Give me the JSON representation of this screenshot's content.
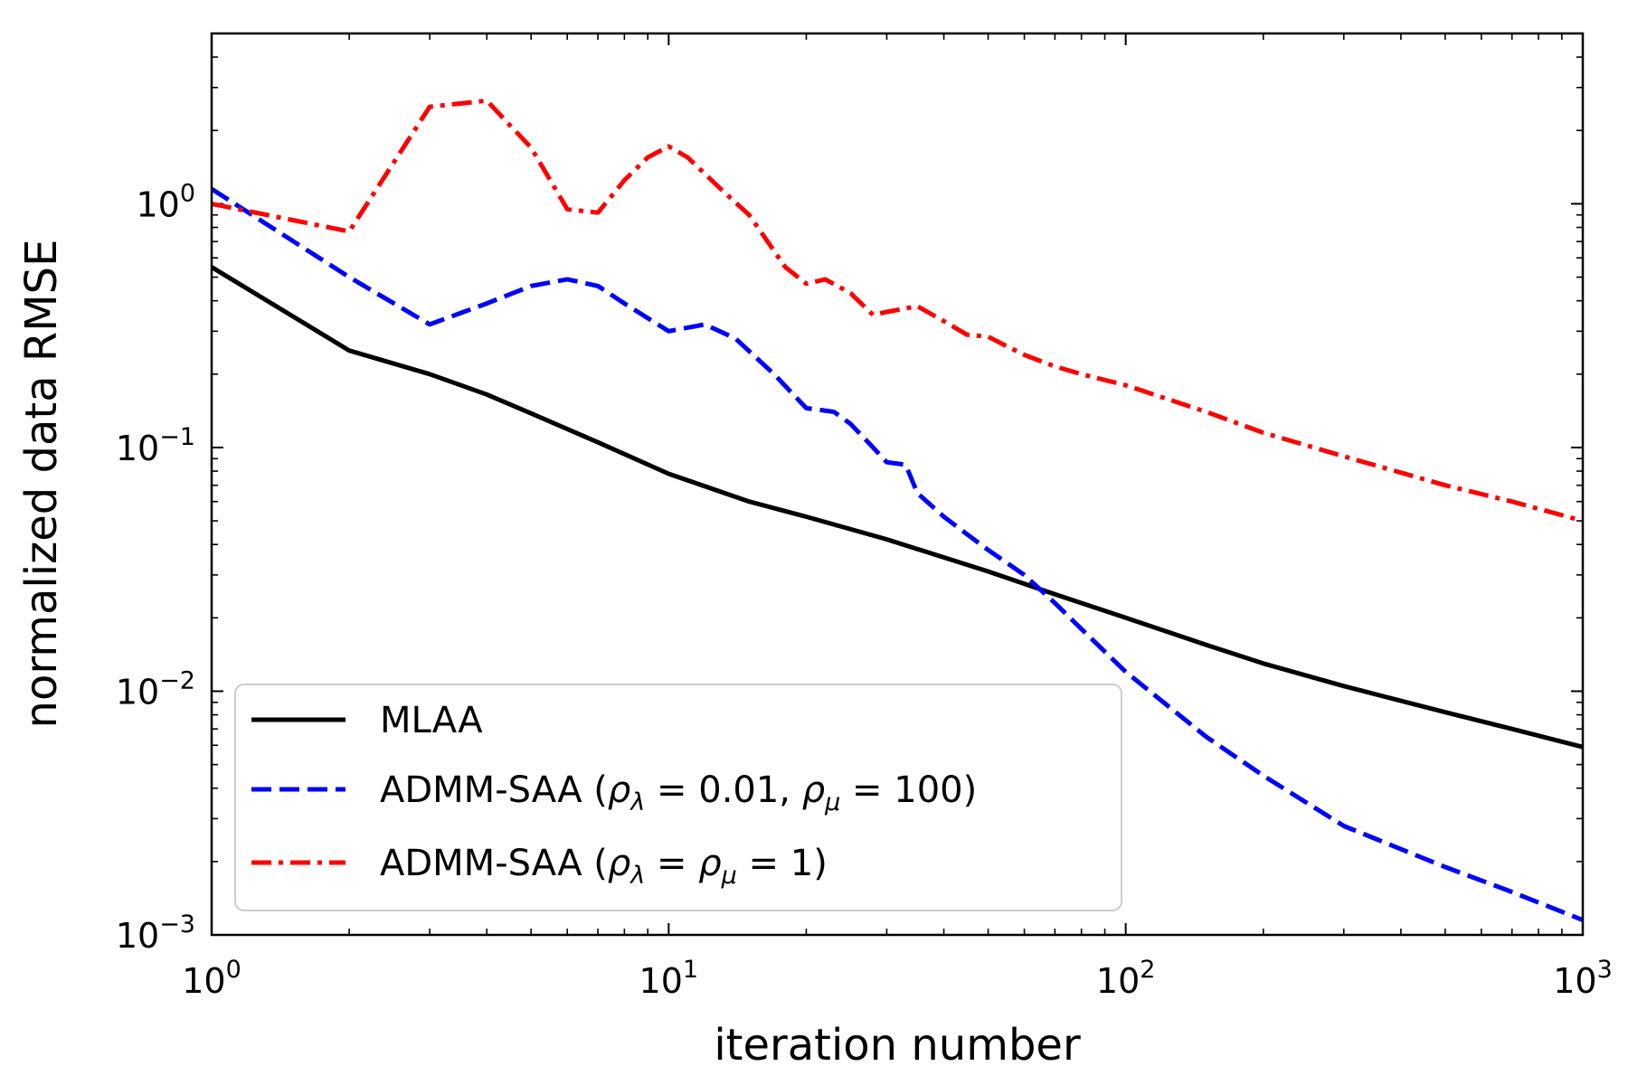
{
  "chart_data": {
    "type": "line",
    "xlabel": "iteration number",
    "ylabel": "normalized data RMSE",
    "xscale": "log",
    "yscale": "log",
    "xlim": [
      1,
      1000
    ],
    "ylim": [
      0.001,
      5
    ],
    "x_ticks": [
      {
        "base": "10",
        "exp": "0"
      },
      {
        "base": "10",
        "exp": "1"
      },
      {
        "base": "10",
        "exp": "2"
      },
      {
        "base": "10",
        "exp": "3"
      }
    ],
    "y_ticks": [
      {
        "base": "10",
        "exp": "−3"
      },
      {
        "base": "10",
        "exp": "−2"
      },
      {
        "base": "10",
        "exp": "−1"
      },
      {
        "base": "10",
        "exp": "0"
      }
    ],
    "grid": false,
    "legend_position": "lower-left",
    "series": [
      {
        "name": "MLAA",
        "color": "#000000",
        "style": "solid",
        "x": [
          1,
          2,
          3,
          4,
          5,
          7,
          10,
          15,
          20,
          30,
          50,
          70,
          100,
          150,
          200,
          300,
          500,
          700,
          1000
        ],
        "y": [
          0.55,
          0.25,
          0.2,
          0.165,
          0.138,
          0.105,
          0.078,
          0.06,
          0.052,
          0.042,
          0.031,
          0.025,
          0.02,
          0.0155,
          0.013,
          0.0105,
          0.0082,
          0.007,
          0.0059
        ]
      },
      {
        "name": "ADMM-SAA (ρλ = 0.01, ρμ = 100)",
        "color": "#0000ff",
        "style": "dashed",
        "x": [
          1,
          2,
          3,
          4,
          5,
          6,
          7,
          8,
          10,
          12,
          14,
          17,
          20,
          23,
          25,
          28,
          30,
          33,
          35,
          40,
          45,
          50,
          60,
          70,
          80,
          100,
          150,
          200,
          300,
          500,
          700,
          1000
        ],
        "y": [
          1.15,
          0.5,
          0.32,
          0.39,
          0.46,
          0.49,
          0.46,
          0.39,
          0.3,
          0.32,
          0.28,
          0.2,
          0.145,
          0.14,
          0.125,
          0.1,
          0.087,
          0.085,
          0.065,
          0.052,
          0.044,
          0.038,
          0.03,
          0.023,
          0.018,
          0.012,
          0.0065,
          0.0045,
          0.0028,
          0.0019,
          0.0015,
          0.00115
        ]
      },
      {
        "name": "ADMM-SAA (ρλ = ρμ = 1)",
        "color": "#ff0000",
        "style": "dashdot",
        "x": [
          1,
          2,
          3,
          4,
          5,
          6,
          7,
          8,
          9,
          10,
          11,
          13,
          15,
          18,
          20,
          22,
          25,
          28,
          30,
          35,
          40,
          45,
          50,
          55,
          60,
          70,
          80,
          100,
          150,
          200,
          300,
          500,
          700,
          1000
        ],
        "y": [
          1.0,
          0.77,
          2.5,
          2.65,
          1.7,
          0.95,
          0.92,
          1.25,
          1.55,
          1.72,
          1.55,
          1.15,
          0.9,
          0.55,
          0.47,
          0.49,
          0.43,
          0.35,
          0.36,
          0.38,
          0.33,
          0.29,
          0.285,
          0.26,
          0.24,
          0.215,
          0.2,
          0.18,
          0.14,
          0.115,
          0.092,
          0.07,
          0.06,
          0.05
        ]
      }
    ],
    "legend": [
      {
        "id": "mlaa",
        "text": "MLAA"
      },
      {
        "id": "admm1",
        "prefix": "ADMM-SAA (",
        "rho": "ρ",
        "sub1": "λ",
        "eq1": " = 0.01, ",
        "rho2": "ρ",
        "sub2": "μ",
        "eq2": " = 100)"
      },
      {
        "id": "admm2",
        "prefix": "ADMM-SAA (",
        "rho": "ρ",
        "sub1": "λ",
        "eq1": " = ",
        "rho2": "ρ",
        "sub2": "μ",
        "eq2": " = 1)"
      }
    ]
  }
}
